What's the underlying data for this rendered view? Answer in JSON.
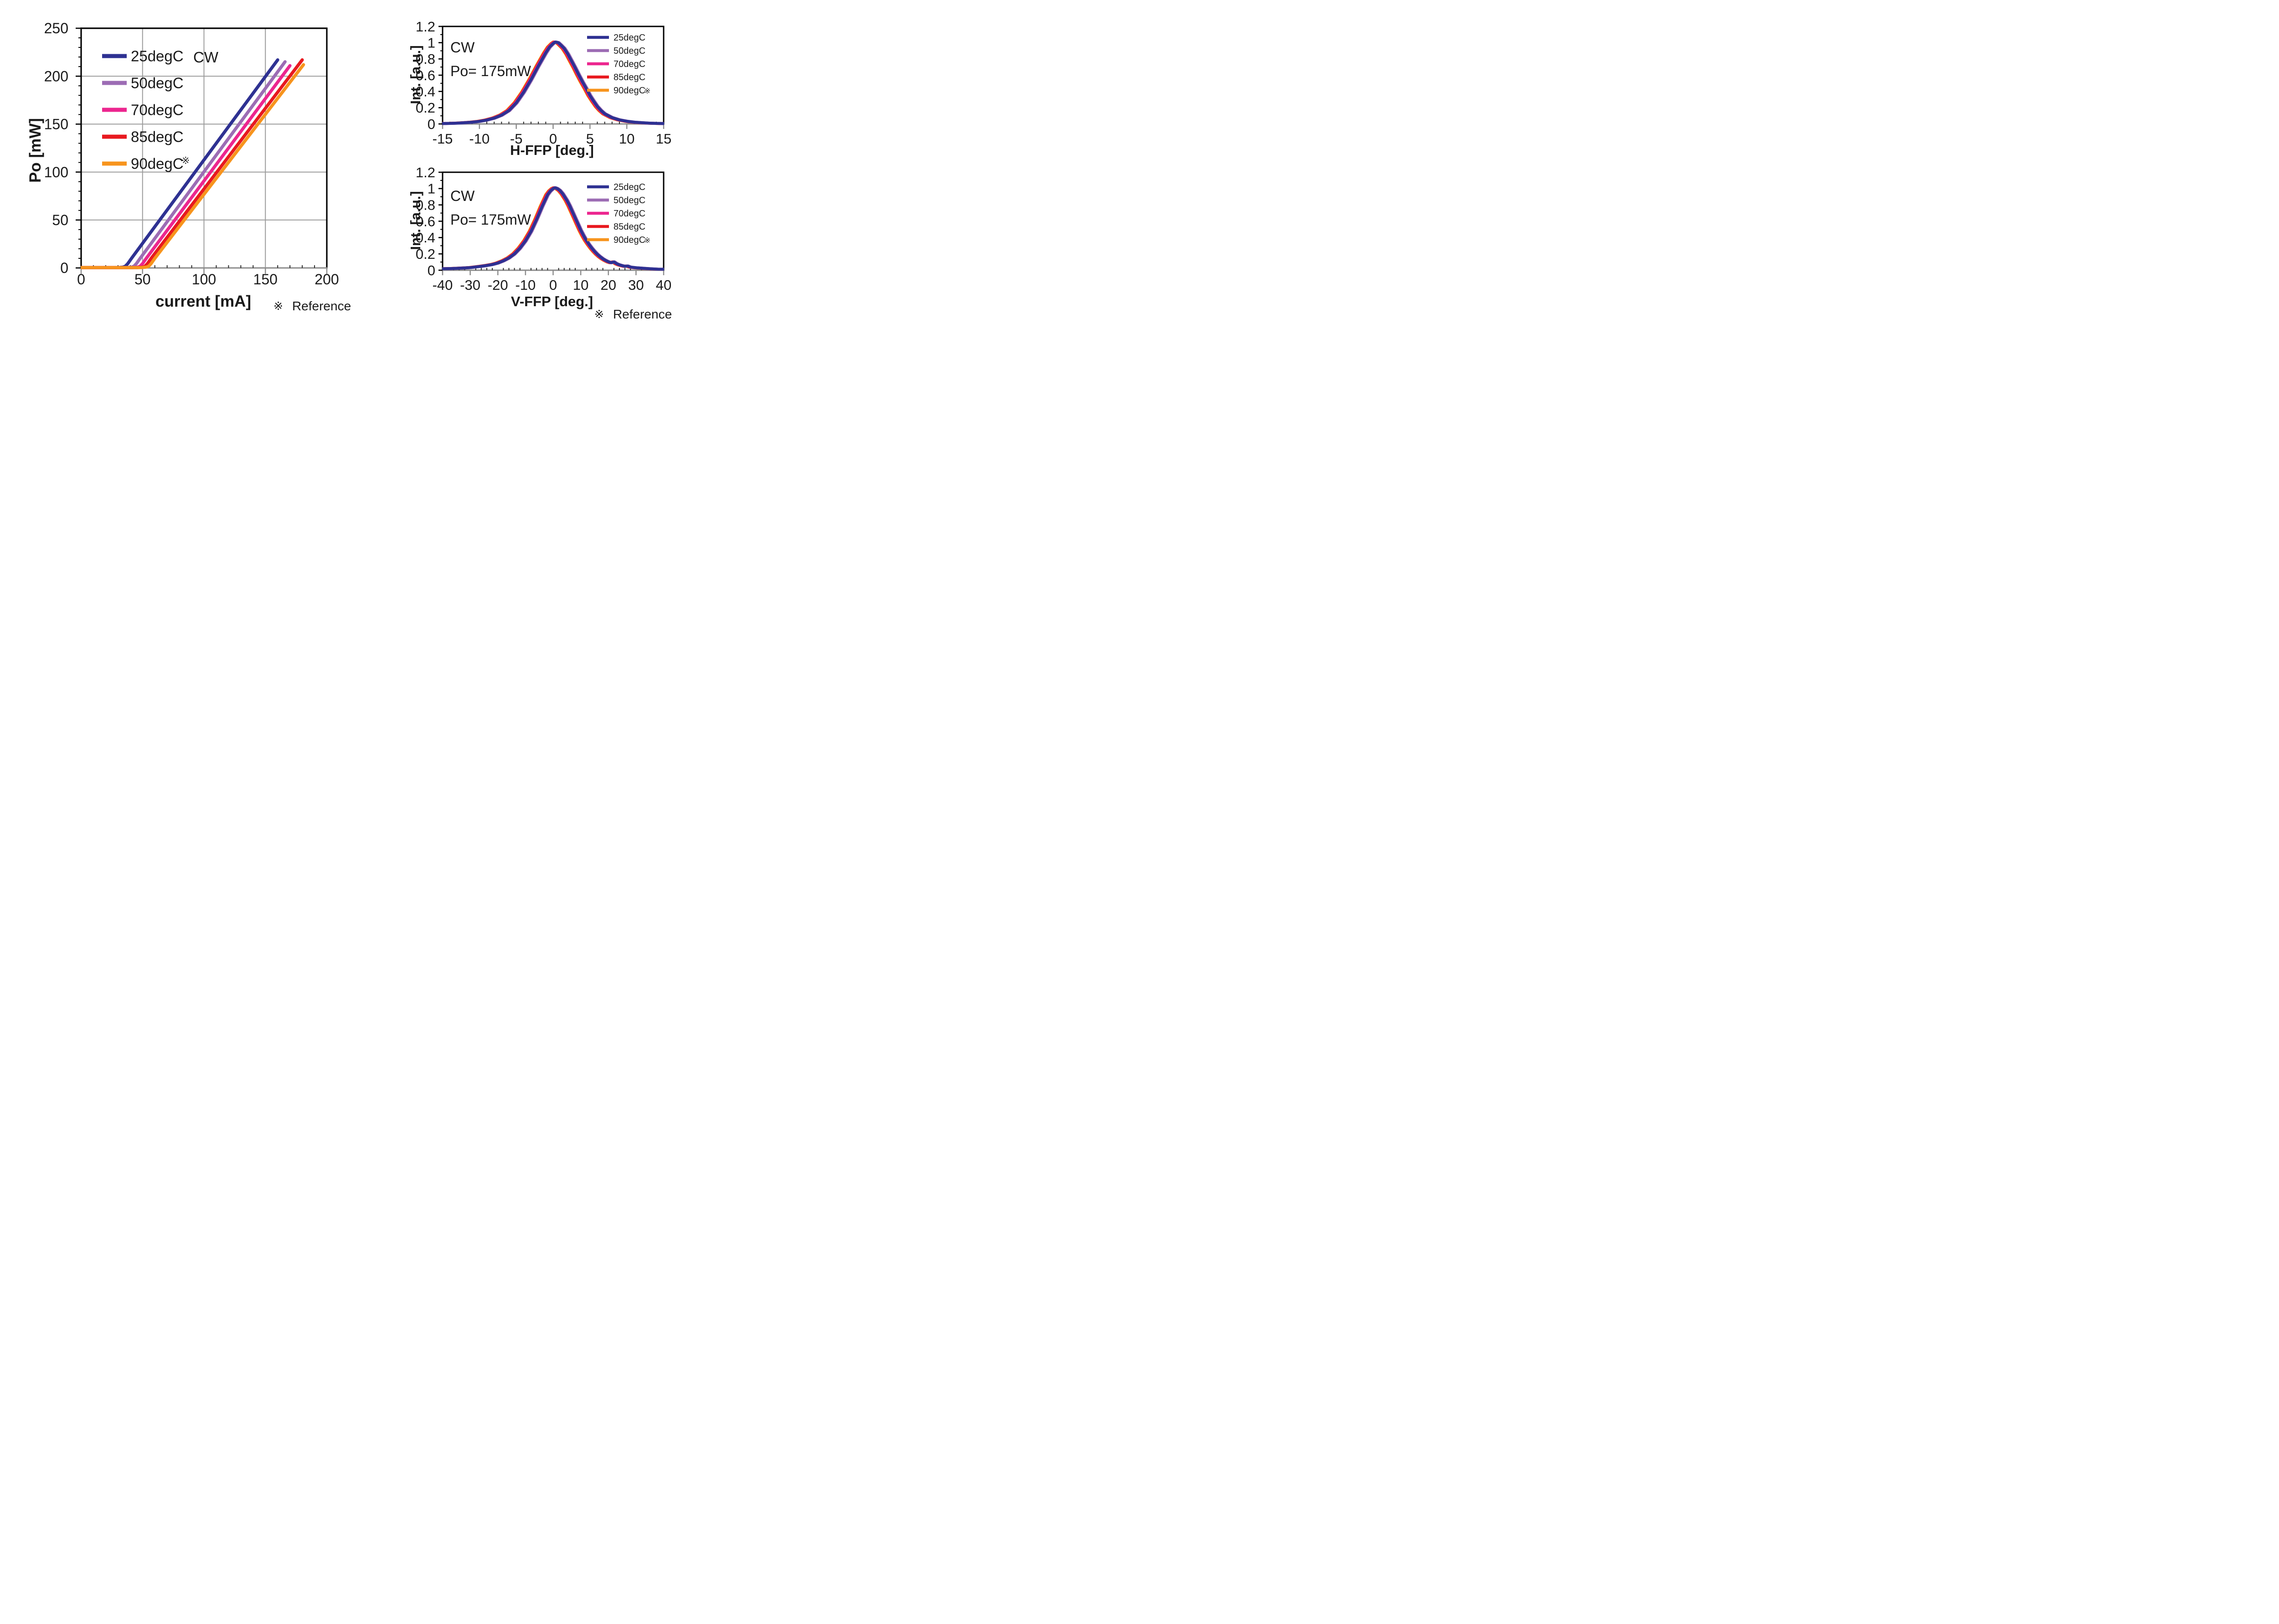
{
  "footnotes": {
    "left": {
      "mark": "※",
      "text": "Reference"
    },
    "right": {
      "mark": "※",
      "text": "Reference"
    }
  },
  "palette": {
    "deg25": "#2E3192",
    "deg50": "#9C6CB4",
    "deg70": "#EC268F",
    "deg85": "#E8191F",
    "deg90": "#F7941D",
    "grid": "#9C9C9C",
    "axis_gray": "#8C8C8C",
    "border_black": "#000000",
    "text": "#1a1a1a"
  },
  "chart_data": [
    {
      "id": "li",
      "type": "line",
      "title": "",
      "annotation": "CW",
      "xlabel": "current [mA]",
      "ylabel": "Po [mW]",
      "xlim": [
        0,
        200
      ],
      "ylim": [
        0,
        250
      ],
      "x_tick_labels": [
        "0",
        "50",
        "100",
        "150",
        "200"
      ],
      "y_tick_labels": [
        "0",
        "50",
        "100",
        "150",
        "200",
        "250"
      ],
      "x_major_step": 50,
      "x_minor_step": 10,
      "y_major_step": 50,
      "y_minor_step": 10,
      "grid": true,
      "legend_position": "upper-left",
      "draw_order": [
        0,
        1,
        2,
        3,
        4
      ],
      "series": [
        {
          "name": "25degC",
          "color": "#2E3192",
          "threshold_mA": 36,
          "points": [
            [
              0,
              0.4
            ],
            [
              30,
              0.4
            ],
            [
              34,
              0.8
            ],
            [
              36,
              1.8
            ],
            [
              38,
              4.5
            ],
            [
              41,
              10
            ],
            [
              160,
              217
            ]
          ]
        },
        {
          "name": "50degC",
          "color": "#9C6CB4",
          "threshold_mA": 43,
          "points": [
            [
              0,
              0.4
            ],
            [
              37,
              0.4
            ],
            [
              41,
              0.8
            ],
            [
              43,
              1.8
            ],
            [
              45,
              4.5
            ],
            [
              48,
              10
            ],
            [
              166,
              215
            ]
          ]
        },
        {
          "name": "70degC",
          "color": "#EC268F",
          "threshold_mA": 48,
          "points": [
            [
              0,
              0.4
            ],
            [
              42,
              0.4
            ],
            [
              46,
              0.8
            ],
            [
              48,
              1.8
            ],
            [
              50,
              4.5
            ],
            [
              53,
              10
            ],
            [
              170,
              211
            ]
          ]
        },
        {
          "name": "85degC",
          "color": "#E8191F",
          "threshold_mA": 52,
          "points": [
            [
              0,
              0.4
            ],
            [
              46,
              0.4
            ],
            [
              50,
              0.8
            ],
            [
              52,
              1.8
            ],
            [
              54,
              4.5
            ],
            [
              57,
              10
            ],
            [
              180,
              217
            ]
          ]
        },
        {
          "name": "90degC",
          "ref_mark": "※",
          "color": "#F7941D",
          "threshold_mA": 55,
          "points": [
            [
              0,
              0.4
            ],
            [
              49,
              0.4
            ],
            [
              53,
              0.8
            ],
            [
              55,
              1.8
            ],
            [
              57,
              4.5
            ],
            [
              60,
              10
            ],
            [
              181,
              212
            ]
          ]
        }
      ]
    },
    {
      "id": "hffp",
      "type": "line",
      "annotations": [
        "CW",
        "Po= 175mW"
      ],
      "xlabel": "H-FFP [deg.]",
      "ylabel": "Int. [a.u.]",
      "xlim": [
        -15,
        15
      ],
      "ylim": [
        0,
        1.2
      ],
      "x_tick_labels": [
        "-15",
        "-10",
        "-5",
        "0",
        "5",
        "10",
        "15"
      ],
      "y_tick_labels": [
        "0",
        "0.2",
        "0.4",
        "0.6",
        "0.8",
        "1",
        "1.2"
      ],
      "x_major_step": 5,
      "x_minor_step": 1,
      "y_major_step": 0.2,
      "y_minor_step": 0.1,
      "grid": false,
      "legend_position": "upper-right",
      "draw_order": [
        4,
        3,
        2,
        1,
        0
      ],
      "peak_intensity": 1.01,
      "profile": [
        [
          -15,
          0.005
        ],
        [
          -14,
          0.007
        ],
        [
          -13,
          0.01
        ],
        [
          -12,
          0.015
        ],
        [
          -11,
          0.022
        ],
        [
          -10,
          0.032
        ],
        [
          -9,
          0.048
        ],
        [
          -8,
          0.072
        ],
        [
          -7,
          0.108
        ],
        [
          -6,
          0.165
        ],
        [
          -5,
          0.26
        ],
        [
          -4,
          0.39
        ],
        [
          -3,
          0.545
        ],
        [
          -2,
          0.715
        ],
        [
          -1,
          0.875
        ],
        [
          -0.5,
          0.945
        ],
        [
          0,
          0.99
        ],
        [
          0.3,
          1.008
        ],
        [
          0.7,
          1.0
        ],
        [
          1,
          0.975
        ],
        [
          1.5,
          0.93
        ],
        [
          2,
          0.86
        ],
        [
          2.5,
          0.775
        ],
        [
          3,
          0.69
        ],
        [
          3.5,
          0.6
        ],
        [
          4,
          0.515
        ],
        [
          4.5,
          0.435
        ],
        [
          5,
          0.35
        ],
        [
          5.5,
          0.28
        ],
        [
          6,
          0.215
        ],
        [
          6.5,
          0.165
        ],
        [
          7,
          0.125
        ],
        [
          8,
          0.078
        ],
        [
          9,
          0.05
        ],
        [
          10,
          0.033
        ],
        [
          11,
          0.022
        ],
        [
          12,
          0.015
        ],
        [
          13,
          0.01
        ],
        [
          14,
          0.007
        ],
        [
          15,
          0.005
        ]
      ],
      "series": [
        {
          "name": "25degC",
          "color": "#2E3192",
          "x_offset": 0
        },
        {
          "name": "50degC",
          "color": "#9C6CB4",
          "x_offset": 0.12
        },
        {
          "name": "70degC",
          "color": "#EC268F",
          "x_offset": -0.1
        },
        {
          "name": "85degC",
          "color": "#E8191F",
          "x_offset": -0.2
        },
        {
          "name": "90degC",
          "ref_mark": "※",
          "color": "#F7941D",
          "x_offset": -0.3
        }
      ]
    },
    {
      "id": "vffp",
      "type": "line",
      "annotations": [
        "CW",
        "Po= 175mW"
      ],
      "xlabel": "V-FFP [deg.]",
      "ylabel": "Int. [a.u.]",
      "xlim": [
        -40,
        40
      ],
      "ylim": [
        0,
        1.2
      ],
      "x_tick_labels": [
        "-40",
        "-30",
        "-20",
        "-10",
        "0",
        "10",
        "20",
        "30",
        "40"
      ],
      "y_tick_labels": [
        "0",
        "0.2",
        "0.4",
        "0.6",
        "0.8",
        "1",
        "1.2"
      ],
      "x_major_step": 10,
      "x_minor_step": 2,
      "y_major_step": 0.2,
      "y_minor_step": 0.1,
      "grid": false,
      "legend_position": "upper-right",
      "draw_order": [
        4,
        3,
        2,
        1,
        0
      ],
      "peak_intensity": 1.01,
      "profile": [
        [
          -40,
          0.018
        ],
        [
          -37,
          0.02
        ],
        [
          -35,
          0.023
        ],
        [
          -32,
          0.028
        ],
        [
          -30,
          0.032
        ],
        [
          -28,
          0.04
        ],
        [
          -26,
          0.048
        ],
        [
          -24,
          0.058
        ],
        [
          -22,
          0.07
        ],
        [
          -20,
          0.088
        ],
        [
          -18,
          0.115
        ],
        [
          -16,
          0.15
        ],
        [
          -14,
          0.2
        ],
        [
          -12,
          0.27
        ],
        [
          -10,
          0.36
        ],
        [
          -8,
          0.475
        ],
        [
          -6,
          0.62
        ],
        [
          -4,
          0.78
        ],
        [
          -2,
          0.925
        ],
        [
          -1,
          0.97
        ],
        [
          0,
          1.0
        ],
        [
          0.7,
          1.01
        ],
        [
          1.5,
          1.0
        ],
        [
          2.5,
          0.975
        ],
        [
          3.5,
          0.935
        ],
        [
          5,
          0.855
        ],
        [
          6,
          0.79
        ],
        [
          7,
          0.715
        ],
        [
          8,
          0.64
        ],
        [
          9,
          0.565
        ],
        [
          10,
          0.49
        ],
        [
          11,
          0.425
        ],
        [
          12,
          0.365
        ],
        [
          13,
          0.315
        ],
        [
          14,
          0.27
        ],
        [
          15,
          0.23
        ],
        [
          16,
          0.195
        ],
        [
          17,
          0.165
        ],
        [
          18,
          0.14
        ],
        [
          19,
          0.12
        ],
        [
          20,
          0.103
        ],
        [
          21,
          0.092
        ],
        [
          22,
          0.102
        ],
        [
          23,
          0.08
        ],
        [
          24,
          0.066
        ],
        [
          25,
          0.056
        ],
        [
          26,
          0.048
        ],
        [
          27,
          0.052
        ],
        [
          28,
          0.038
        ],
        [
          30,
          0.03
        ],
        [
          32,
          0.025
        ],
        [
          34,
          0.02
        ],
        [
          36,
          0.016
        ],
        [
          38,
          0.013
        ],
        [
          40,
          0.012
        ]
      ],
      "series": [
        {
          "name": "25degC",
          "color": "#2E3192",
          "x_offset": 0
        },
        {
          "name": "50degC",
          "color": "#9C6CB4",
          "x_offset": 0.3
        },
        {
          "name": "70degC",
          "color": "#EC268F",
          "x_offset": -0.2
        },
        {
          "name": "85degC",
          "color": "#E8191F",
          "x_offset": -0.45
        },
        {
          "name": "90degC",
          "ref_mark": "※",
          "color": "#F7941D",
          "x_offset": -0.7
        }
      ]
    }
  ]
}
